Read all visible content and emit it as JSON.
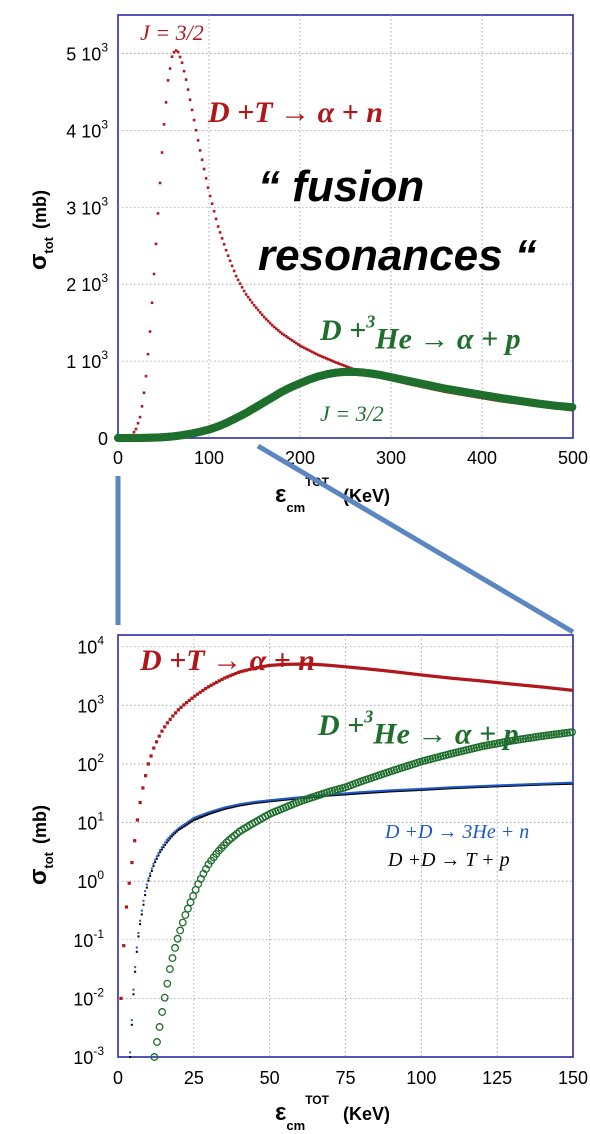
{
  "colors": {
    "dt": "#b0171a",
    "dhe3": "#1f6e2d",
    "dd_he3n": "#1f57c6",
    "dd_tp": "#000000",
    "frame": "#2a2aa8",
    "connector": "#5b86c0"
  },
  "callout": {
    "line1": "“ fusion",
    "line2": "resonances “"
  },
  "chart_data": [
    {
      "type": "scatter",
      "scale": "linear",
      "grid": true,
      "title": "",
      "xlabel_main": "ε",
      "xlabel_sub": "cm",
      "xlabel_sup": "TOT",
      "xlabel_unit": "(KeV)",
      "ylabel_main": "σ",
      "ylabel_sub": "tot",
      "ylabel_unit": "(mb)",
      "xlim": [
        0,
        500
      ],
      "ylim": [
        0,
        5500
      ],
      "x_ticks": [
        "0",
        "100",
        "200",
        "300",
        "400",
        "500"
      ],
      "y_ticks": [
        {
          "value": 0,
          "mant": "0",
          "exp": ""
        },
        {
          "value": 1000,
          "mant": "1 10",
          "exp": "3"
        },
        {
          "value": 2000,
          "mant": "2 10",
          "exp": "3"
        },
        {
          "value": 3000,
          "mant": "3 10",
          "exp": "3"
        },
        {
          "value": 4000,
          "mant": "4 10",
          "exp": "3"
        },
        {
          "value": 5000,
          "mant": "5 10",
          "exp": "3"
        }
      ],
      "series": [
        {
          "name": "D +T → α + n",
          "color_key": "dt",
          "marker": "square",
          "x": [
            0,
            5,
            10,
            15,
            20,
            25,
            30,
            35,
            40,
            45,
            50,
            55,
            60,
            65,
            70,
            75,
            80,
            90,
            100,
            110,
            120,
            130,
            140,
            150,
            160,
            170,
            180,
            200,
            220,
            240,
            260,
            280,
            300,
            320,
            340,
            360,
            380,
            400,
            420,
            440,
            460,
            480,
            500
          ],
          "y": [
            0,
            0,
            5,
            30,
            120,
            300,
            700,
            1350,
            2200,
            3100,
            4000,
            4650,
            5000,
            5050,
            4900,
            4650,
            4350,
            3750,
            3200,
            2750,
            2400,
            2100,
            1880,
            1720,
            1580,
            1460,
            1360,
            1200,
            1080,
            980,
            890,
            820,
            760,
            700,
            650,
            600,
            560,
            520,
            480,
            450,
            420,
            390,
            360
          ]
        },
        {
          "name": "D +3He → α + p",
          "color_key": "dhe3",
          "marker": "circle",
          "x": [
            0,
            10,
            20,
            30,
            40,
            50,
            60,
            70,
            80,
            90,
            100,
            110,
            120,
            130,
            140,
            150,
            160,
            170,
            180,
            190,
            200,
            210,
            220,
            230,
            240,
            250,
            260,
            270,
            280,
            290,
            300,
            320,
            340,
            360,
            380,
            400,
            420,
            440,
            460,
            480,
            500
          ],
          "y": [
            0,
            0,
            0,
            2,
            5,
            10,
            20,
            35,
            55,
            80,
            110,
            150,
            200,
            260,
            320,
            390,
            460,
            530,
            600,
            660,
            710,
            760,
            800,
            830,
            850,
            860,
            860,
            850,
            835,
            815,
            790,
            740,
            690,
            640,
            600,
            560,
            520,
            485,
            450,
            420,
            400
          ]
        }
      ],
      "labels": [
        {
          "text": "J = 3/2",
          "color_key": "dt"
        },
        {
          "text": "J = 3/2",
          "color_key": "dhe3"
        }
      ]
    },
    {
      "type": "scatter",
      "scale": "log-y",
      "grid": true,
      "title": "",
      "xlabel_main": "ε",
      "xlabel_sub": "cm",
      "xlabel_sup": "TOT",
      "xlabel_unit": "(KeV)",
      "ylabel_main": "σ",
      "ylabel_sub": "tot",
      "ylabel_unit": "(mb)",
      "xlim": [
        0,
        150
      ],
      "ylim_exp": [
        -3,
        4.2
      ],
      "x_ticks": [
        "0",
        "25",
        "50",
        "75",
        "100",
        "125",
        "150"
      ],
      "y_ticks": [
        {
          "exp_value": -3,
          "mant": "10",
          "exp": "-3"
        },
        {
          "exp_value": -2,
          "mant": "10",
          "exp": "-2"
        },
        {
          "exp_value": -1,
          "mant": "10",
          "exp": "-1"
        },
        {
          "exp_value": 0,
          "mant": "10",
          "exp": "0"
        },
        {
          "exp_value": 1,
          "mant": "10",
          "exp": "1"
        },
        {
          "exp_value": 2,
          "mant": "10",
          "exp": "2"
        },
        {
          "exp_value": 3,
          "mant": "10",
          "exp": "3"
        },
        {
          "exp_value": 4,
          "mant": "10",
          "exp": "4"
        }
      ],
      "series": [
        {
          "name": "D +T → α + n",
          "color_key": "dt",
          "marker": "square",
          "x": [
            1,
            2,
            3,
            4,
            5,
            6,
            7,
            8,
            9,
            10,
            12,
            14,
            16,
            18,
            20,
            22,
            25,
            28,
            30,
            35,
            40,
            45,
            50,
            55,
            60,
            65,
            70,
            80,
            90,
            100,
            110,
            120,
            130,
            140,
            150
          ],
          "y": [
            0.01,
            0.1,
            0.5,
            1.2,
            3,
            8,
            18,
            35,
            60,
            100,
            200,
            330,
            480,
            650,
            850,
            1050,
            1400,
            1800,
            2100,
            2900,
            3700,
            4300,
            4800,
            5000,
            5050,
            5000,
            4800,
            4300,
            3800,
            3300,
            2900,
            2600,
            2300,
            2050,
            1800
          ]
        },
        {
          "name": "D +D → T + p",
          "color_key": "dd_tp",
          "marker": "square",
          "x": [
            4,
            5,
            6,
            7,
            8,
            9,
            10,
            12,
            14,
            16,
            18,
            20,
            25,
            30,
            35,
            40,
            45,
            50,
            60,
            70,
            80,
            90,
            100,
            110,
            120,
            130,
            140,
            150
          ],
          "y": [
            0.001,
            0.01,
            0.05,
            0.15,
            0.3,
            0.6,
            1,
            2,
            3.2,
            4.5,
            6,
            7.5,
            11,
            14,
            17,
            19.5,
            21.5,
            23,
            26,
            29,
            31.5,
            34,
            36,
            38.5,
            40.5,
            42.5,
            44.5,
            46
          ]
        },
        {
          "name": "D +D → 3He + n",
          "color_key": "dd_he3n",
          "marker": "square",
          "x": [
            4,
            5,
            6,
            7,
            8,
            9,
            10,
            12,
            14,
            16,
            18,
            20,
            25,
            30,
            35,
            40,
            45,
            50,
            60,
            70,
            80,
            90,
            100,
            110,
            120,
            130,
            140,
            150
          ],
          "y": [
            0.0012,
            0.012,
            0.06,
            0.17,
            0.35,
            0.7,
            1.1,
            2.2,
            3.5,
            5,
            6.5,
            8,
            12,
            15,
            18,
            20.5,
            22.5,
            24,
            27,
            30,
            33,
            35.5,
            37.5,
            40,
            42,
            44,
            46,
            48
          ]
        },
        {
          "name": "D +3He → α + p",
          "color_key": "dhe3",
          "marker": "circle",
          "x": [
            12,
            13,
            14,
            15,
            16,
            17,
            18,
            19,
            20,
            22,
            24,
            26,
            28,
            30,
            33,
            36,
            40,
            45,
            50,
            55,
            60,
            65,
            70,
            75,
            80,
            90,
            100,
            110,
            120,
            130,
            140,
            150
          ],
          "y": [
            0.001,
            0.002,
            0.004,
            0.008,
            0.015,
            0.03,
            0.05,
            0.08,
            0.12,
            0.25,
            0.45,
            0.8,
            1.3,
            2,
            3.2,
            4.7,
            7,
            10,
            14,
            18,
            23,
            28,
            34,
            40,
            50,
            75,
            110,
            150,
            200,
            250,
            300,
            350
          ]
        }
      ]
    }
  ]
}
